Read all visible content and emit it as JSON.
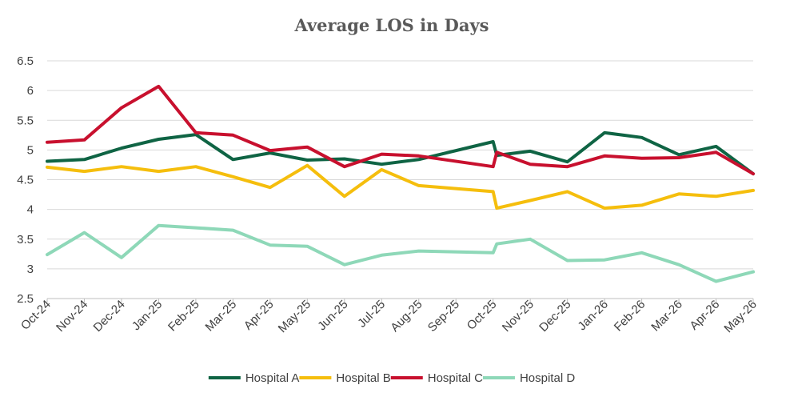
{
  "chart_data": {
    "type": "line",
    "title": "Average LOS in Days",
    "xlabel": "",
    "ylabel": "",
    "ylim": [
      2.5,
      6.5
    ],
    "yticks": [
      "6.5",
      "6",
      "5.5",
      "5",
      "4.5",
      "4",
      "3.5",
      "3",
      "2.5"
    ],
    "grid": true,
    "legend_position": "bottom",
    "categories": [
      "Oct-24",
      "Nov-24",
      "Dec-24",
      "Jan-25",
      "Feb-25",
      "Mar-25",
      "Apr-25",
      "May-25",
      "Jun-25",
      "Jul-25",
      "Aug-25",
      "Sep-25",
      "Oct-25",
      "Nov-25",
      "Dec-25",
      "Jan-26",
      "Feb-26",
      "Mar-26",
      "Apr-26",
      "May-26"
    ],
    "series": [
      {
        "name": "Hospital A",
        "color": "#0f6444",
        "x": [
          0,
          1,
          2,
          3,
          4,
          5,
          6,
          7,
          8,
          9,
          10,
          12,
          12.1,
          13,
          14,
          15,
          16,
          17,
          18,
          19
        ],
        "values": [
          4.81,
          4.84,
          5.03,
          5.18,
          5.26,
          4.84,
          4.95,
          4.83,
          4.85,
          4.76,
          4.84,
          5.14,
          4.91,
          4.98,
          4.8,
          5.29,
          5.21,
          4.92,
          5.06,
          4.6
        ]
      },
      {
        "name": "Hospital B",
        "color": "#f5be0d",
        "x": [
          0,
          1,
          2,
          3,
          4,
          5,
          6,
          7,
          8,
          9,
          10,
          12,
          12.1,
          13,
          14,
          15,
          16,
          17,
          18,
          19
        ],
        "values": [
          4.71,
          4.64,
          4.72,
          4.64,
          4.72,
          4.55,
          4.37,
          4.74,
          4.22,
          4.67,
          4.4,
          4.3,
          4.02,
          4.15,
          4.3,
          4.02,
          4.07,
          4.26,
          4.22,
          4.32
        ]
      },
      {
        "name": "Hospital C",
        "color": "#c8102e",
        "x": [
          0,
          1,
          2,
          3,
          4,
          5,
          6,
          7,
          8,
          9,
          10,
          12,
          12.1,
          13,
          14,
          15,
          16,
          17,
          18,
          19
        ],
        "values": [
          5.13,
          5.17,
          5.71,
          6.07,
          5.29,
          5.25,
          4.99,
          5.05,
          4.72,
          4.93,
          4.9,
          4.72,
          4.96,
          4.76,
          4.72,
          4.9,
          4.86,
          4.87,
          4.96,
          4.6
        ]
      },
      {
        "name": "Hospital D",
        "color": "#8ed8b8",
        "x": [
          0,
          1,
          2,
          3,
          4,
          5,
          6,
          7,
          8,
          9,
          10,
          12,
          12.1,
          13,
          14,
          15,
          16,
          17,
          18,
          19
        ],
        "values": [
          3.24,
          3.61,
          3.19,
          3.73,
          3.69,
          3.65,
          3.4,
          3.38,
          3.07,
          3.23,
          3.3,
          3.27,
          3.42,
          3.5,
          3.14,
          3.15,
          3.27,
          3.07,
          2.79,
          2.95
        ]
      }
    ]
  }
}
